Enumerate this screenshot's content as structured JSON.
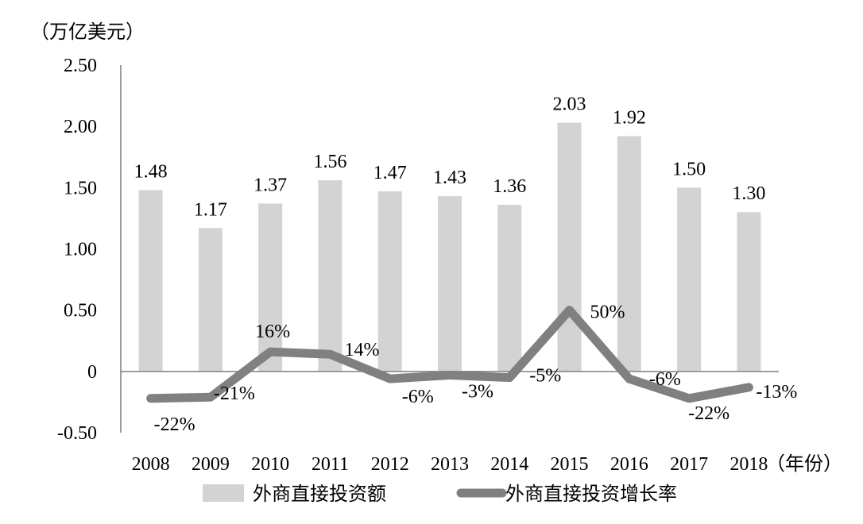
{
  "chart_data": {
    "type": "bar",
    "title": "",
    "ylabel": "（万亿美元）",
    "xlabel": "（年份）",
    "ylim": [
      -0.5,
      2.5
    ],
    "yticks": [
      {
        "value": -0.5,
        "label": "-0.50"
      },
      {
        "value": 0,
        "label": "0"
      },
      {
        "value": 0.5,
        "label": "0.50"
      },
      {
        "value": 1.0,
        "label": "1.00"
      },
      {
        "value": 1.5,
        "label": "1.50"
      },
      {
        "value": 2.0,
        "label": "2.00"
      },
      {
        "value": 2.5,
        "label": "2.50"
      }
    ],
    "categories": [
      "2008",
      "2009",
      "2010",
      "2011",
      "2012",
      "2013",
      "2014",
      "2015",
      "2016",
      "2017",
      "2018"
    ],
    "grid": false,
    "legend_position": "bottom",
    "series": [
      {
        "name": "外商直接投资额",
        "type": "bar",
        "color": "#d3d3d3",
        "values": [
          1.48,
          1.17,
          1.37,
          1.56,
          1.47,
          1.43,
          1.36,
          2.03,
          1.92,
          1.5,
          1.3
        ],
        "labels": [
          "1.48",
          "1.17",
          "1.37",
          "1.56",
          "1.47",
          "1.43",
          "1.36",
          "2.03",
          "1.92",
          "1.50",
          "1.30"
        ]
      },
      {
        "name": "外商直接投资增长率",
        "type": "line",
        "color": "#808080",
        "values": [
          -0.22,
          -0.21,
          0.16,
          0.14,
          -0.06,
          -0.03,
          -0.05,
          0.5,
          -0.06,
          -0.22,
          -0.13
        ],
        "labels": [
          "-22%",
          "-21%",
          "16%",
          "14%",
          "-6%",
          "-3%",
          "-5%",
          "50%",
          "-6%",
          "-22%",
          "-13%"
        ]
      }
    ]
  }
}
